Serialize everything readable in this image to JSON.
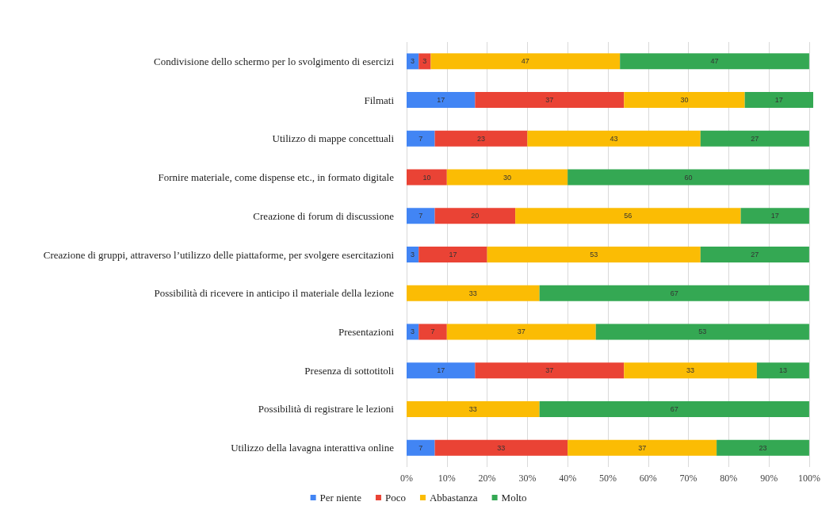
{
  "chart_data": {
    "type": "bar",
    "orientation": "horizontal",
    "stacked": true,
    "categories": [
      "Condivisione dello schermo per lo svolgimento di esercizi",
      "Filmati",
      "Utilizzo di mappe concettuali",
      "Fornire materiale, come dispense etc., in formato digitale",
      "Creazione di forum di discussione",
      "Creazione di gruppi, attraverso l’utilizzo delle piattaforme, per svolgere esercitazioni",
      "Possibilità di ricevere in anticipo il materiale della lezione",
      "Presentazioni",
      "Presenza di sottotitoli",
      "Possibilità di registrare le lezioni",
      "Utilizzo della lavagna interattiva online"
    ],
    "series": [
      {
        "name": "Per niente",
        "color": "#4285f4",
        "values": [
          3,
          17,
          7,
          null,
          7,
          3,
          null,
          3,
          17,
          null,
          7
        ]
      },
      {
        "name": "Poco",
        "color": "#ea4335",
        "values": [
          3,
          37,
          23,
          10,
          20,
          17,
          null,
          7,
          37,
          null,
          33
        ]
      },
      {
        "name": "Abbastanza",
        "color": "#fbbc04",
        "values": [
          47,
          30,
          43,
          30,
          56,
          53,
          33,
          37,
          33,
          33,
          37
        ]
      },
      {
        "name": "Molto",
        "color": "#34a853",
        "values": [
          47,
          17,
          27,
          60,
          17,
          27,
          67,
          53,
          13,
          67,
          23
        ]
      }
    ],
    "xlim": [
      0,
      101
    ],
    "xticks": [
      {
        "value": 0,
        "label": "0%"
      },
      {
        "value": 10,
        "label": "10%"
      },
      {
        "value": 20,
        "label": "20%"
      },
      {
        "value": 30,
        "label": "30%"
      },
      {
        "value": 40,
        "label": "40%"
      },
      {
        "value": 50,
        "label": "50%"
      },
      {
        "value": 60,
        "label": "60%"
      },
      {
        "value": 70,
        "label": "70%"
      },
      {
        "value": 80,
        "label": "80%"
      },
      {
        "value": 90,
        "label": "90%"
      },
      {
        "value": 100,
        "label": "100%"
      }
    ],
    "grid": "x",
    "legend": "bottom",
    "data_labels": true
  }
}
